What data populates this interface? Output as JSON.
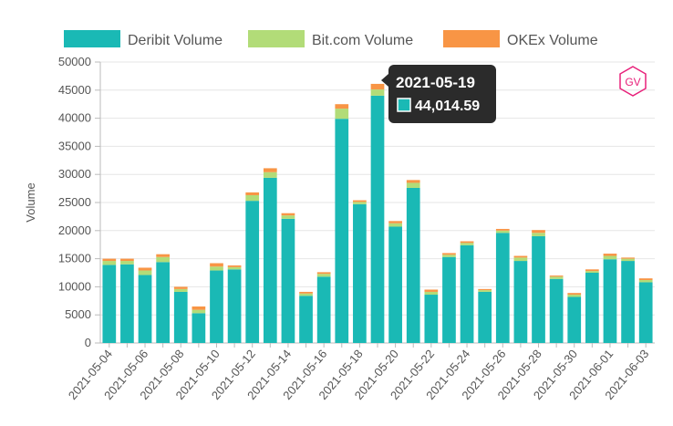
{
  "chart_data": {
    "type": "bar",
    "stacked": true,
    "ylabel": "Volume",
    "ylim": [
      0,
      50000
    ],
    "y_ticks": [
      0,
      5000,
      10000,
      15000,
      20000,
      25000,
      30000,
      35000,
      40000,
      45000,
      50000
    ],
    "categories": [
      "2021-05-04",
      "2021-05-05",
      "2021-05-06",
      "2021-05-07",
      "2021-05-08",
      "2021-05-09",
      "2021-05-10",
      "2021-05-11",
      "2021-05-12",
      "2021-05-13",
      "2021-05-14",
      "2021-05-15",
      "2021-05-16",
      "2021-05-17",
      "2021-05-18",
      "2021-05-19",
      "2021-05-20",
      "2021-05-21",
      "2021-05-22",
      "2021-05-23",
      "2021-05-24",
      "2021-05-25",
      "2021-05-26",
      "2021-05-27",
      "2021-05-28",
      "2021-05-29",
      "2021-05-30",
      "2021-05-31",
      "2021-06-01",
      "2021-06-02",
      "2021-06-03"
    ],
    "x_tick_labels": [
      "2021-05-04",
      "2021-05-06",
      "2021-05-08",
      "2021-05-10",
      "2021-05-12",
      "2021-05-14",
      "2021-05-16",
      "2021-05-18",
      "2021-05-20",
      "2021-05-22",
      "2021-05-24",
      "2021-05-26",
      "2021-05-28",
      "2021-05-30",
      "2021-06-01",
      "2021-06-03"
    ],
    "series": [
      {
        "name": "Deribit Volume",
        "color": "#1ab9b5",
        "values": [
          13900,
          14000,
          12100,
          14400,
          9100,
          5300,
          12900,
          13100,
          25300,
          29400,
          22100,
          8400,
          11800,
          39900,
          24700,
          44014.59,
          20700,
          27600,
          8600,
          15300,
          17400,
          9100,
          19600,
          14600,
          19000,
          11400,
          8200,
          12500,
          14900,
          14600,
          10800
        ]
      },
      {
        "name": "Bit.com Volume",
        "color": "#b2dc78",
        "values": [
          700,
          600,
          800,
          900,
          500,
          600,
          700,
          400,
          1000,
          1000,
          600,
          400,
          500,
          1800,
          400,
          1100,
          600,
          900,
          500,
          400,
          400,
          300,
          400,
          600,
          600,
          400,
          400,
          300,
          600,
          400,
          400
        ]
      },
      {
        "name": "OKEx Volume",
        "color": "#f89545",
        "values": [
          400,
          400,
          500,
          500,
          400,
          600,
          600,
          300,
          500,
          700,
          400,
          300,
          300,
          800,
          300,
          1000,
          400,
          500,
          400,
          300,
          300,
          200,
          300,
          300,
          500,
          200,
          300,
          300,
          400,
          200,
          300
        ]
      }
    ],
    "legend": "top",
    "grid": true,
    "tooltip": {
      "title": "2021-05-19",
      "value": "44,014.59",
      "color": "#1ab9b5"
    },
    "watermark": "GV"
  }
}
